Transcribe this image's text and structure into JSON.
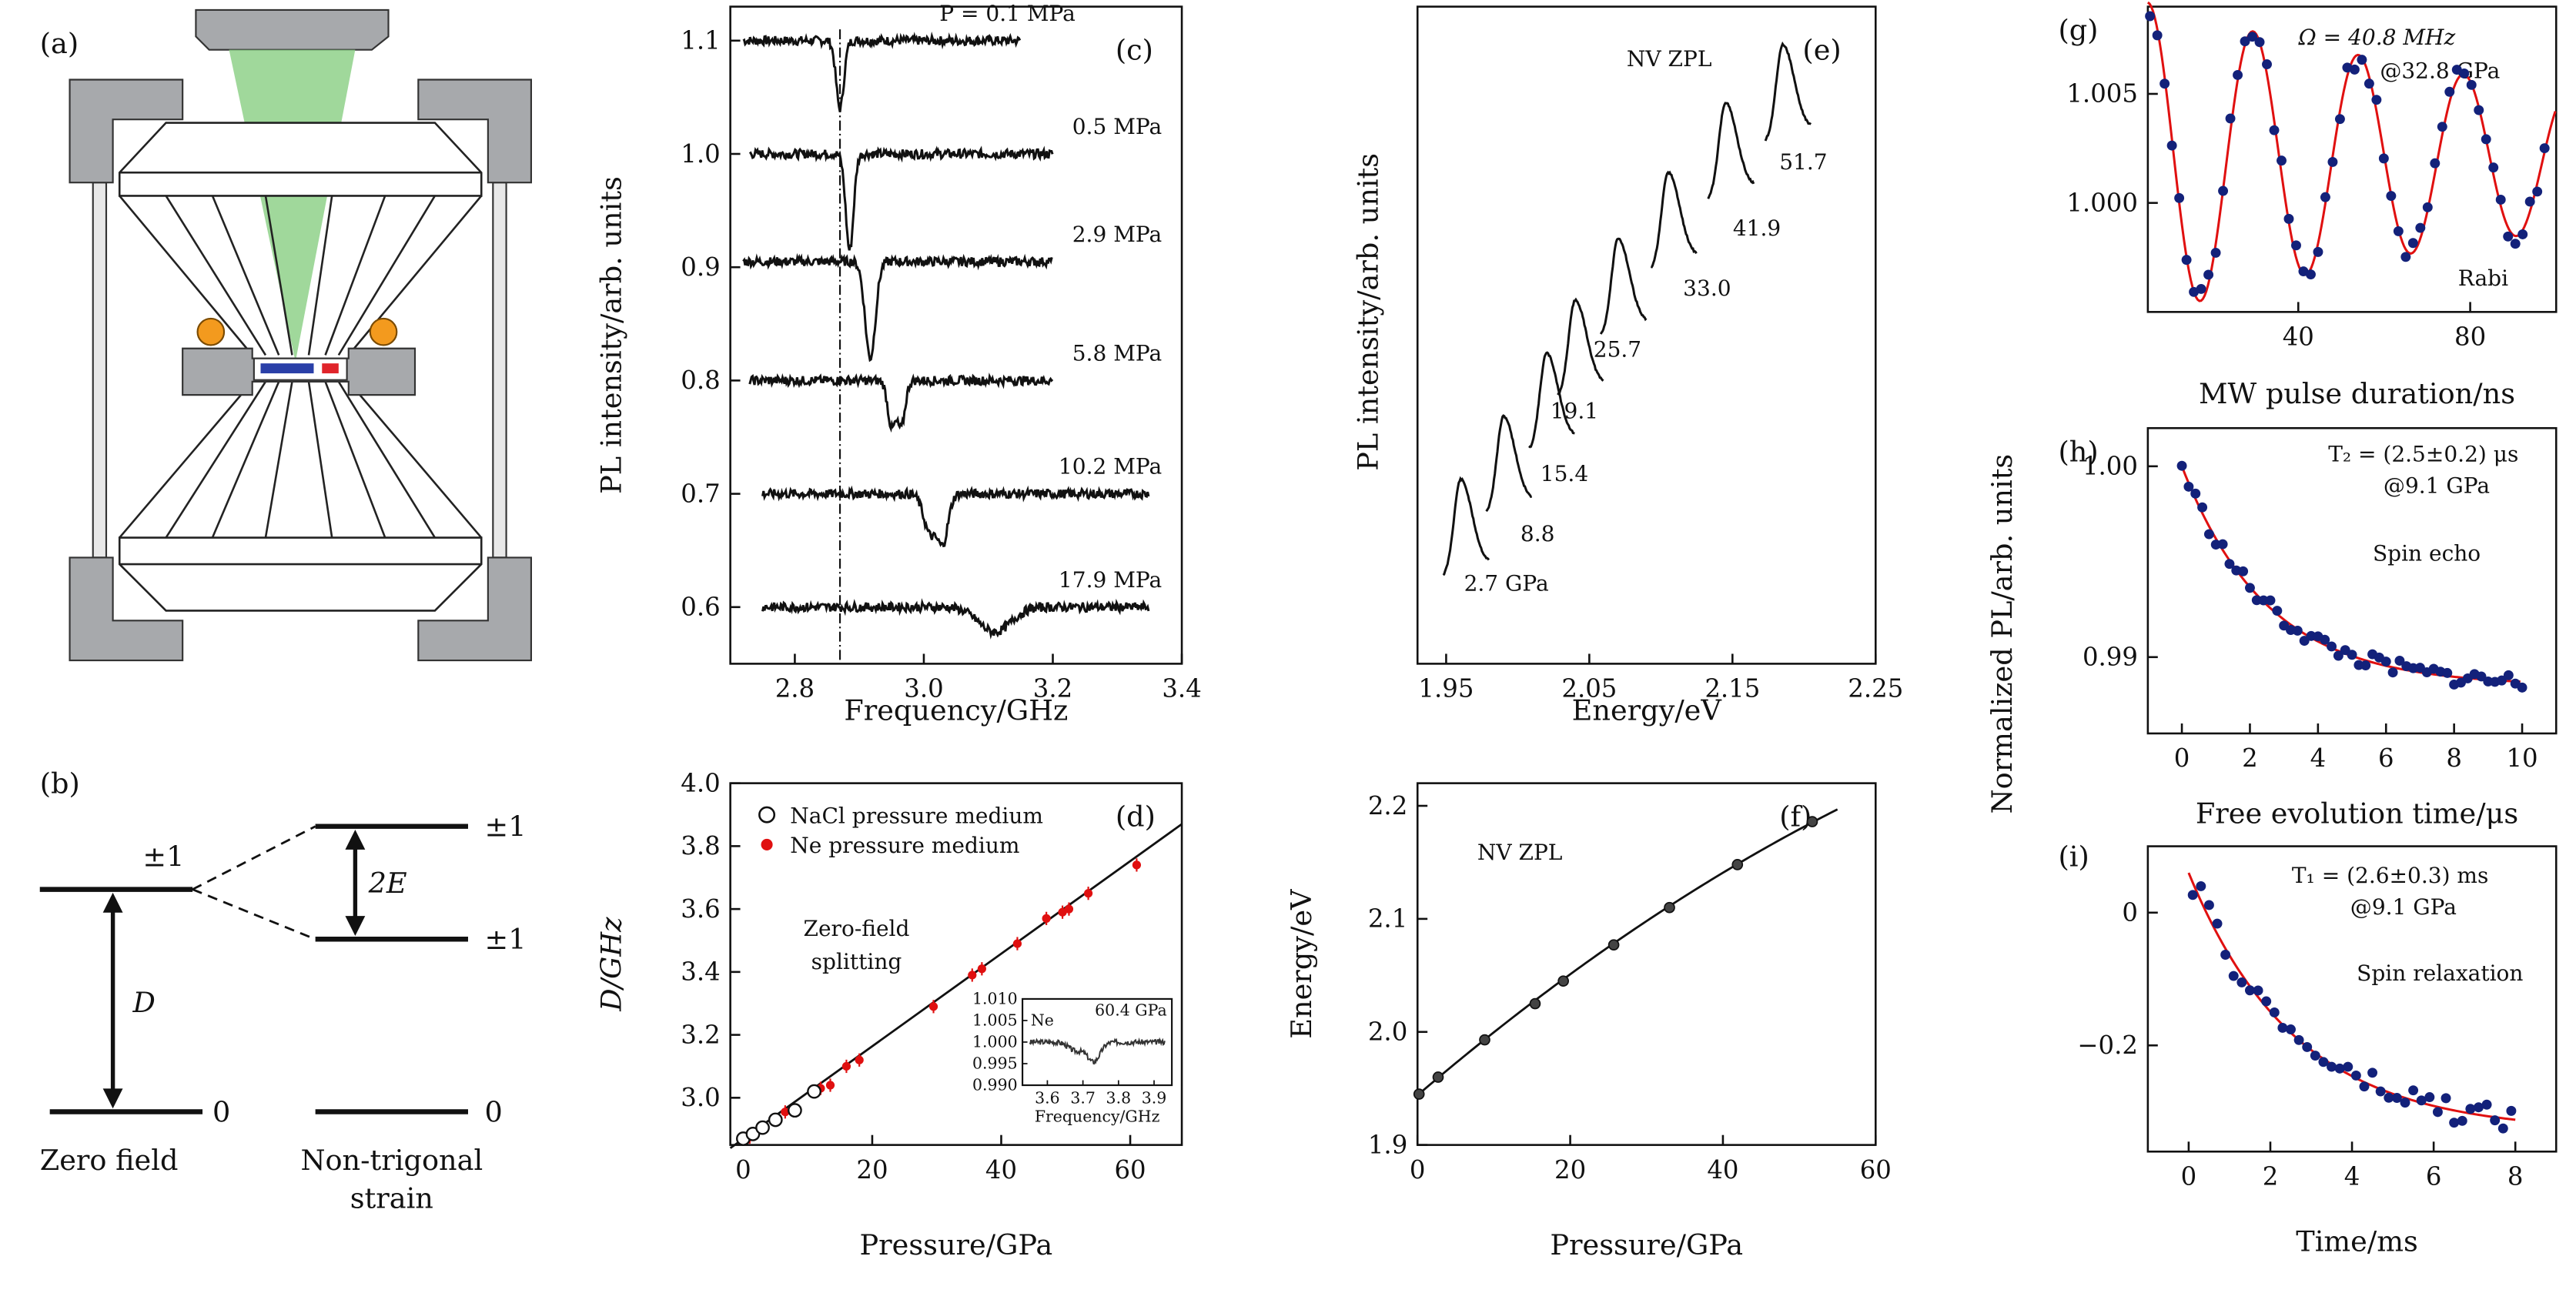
{
  "panels": {
    "a": "(a)",
    "b": "(b)",
    "c": "(c)",
    "d": "(d)",
    "e": "(e)",
    "f": "(f)",
    "g": "(g)",
    "h": "(h)",
    "i": "(i)"
  },
  "level_diagram": {
    "pm1": "±1",
    "zero": "0",
    "d": "D",
    "two_e": "2E",
    "zero_field": "Zero field",
    "strain_line1": "Non-trigonal",
    "strain_line2": "strain"
  },
  "colors": {
    "trace": "#111111",
    "fit": "#e01010",
    "dots": "#13217a",
    "ne_points": "#e01010",
    "beam": "#8fd18a",
    "anvil_gray": "#a7a9ac",
    "ruby": "#f39a1e"
  },
  "chart_data": [
    {
      "panel": "c",
      "type": "line",
      "xlabel": "Frequency/GHz",
      "ylabel": "PL intensity/arb. units",
      "xlim": [
        2.7,
        3.4
      ],
      "ylim": [
        0.55,
        1.13
      ],
      "xticks": [
        "2.8",
        "3.0",
        "3.2",
        "3.4"
      ],
      "yticks": [
        "0.6",
        "0.7",
        "0.8",
        "0.9",
        "1.0",
        "1.1"
      ],
      "series": [
        {
          "name": "P = 0.1 MPa",
          "offset": 1.1,
          "x_range": [
            2.72,
            3.15
          ],
          "dips": [
            [
              2.87,
              0.06,
              0.006
            ]
          ]
        },
        {
          "name": "0.5 MPa",
          "offset": 1.0,
          "x_range": [
            2.73,
            3.2
          ],
          "dips": [
            [
              2.885,
              0.085,
              0.006
            ]
          ]
        },
        {
          "name": "2.9 MPa",
          "offset": 0.905,
          "x_range": [
            2.72,
            3.2
          ],
          "dips": [
            [
              2.917,
              0.085,
              0.008
            ]
          ]
        },
        {
          "name": "5.8 MPa",
          "offset": 0.8,
          "x_range": [
            2.73,
            3.2
          ],
          "dips": [
            [
              2.95,
              0.04,
              0.006
            ],
            [
              2.965,
              0.04,
              0.006
            ]
          ]
        },
        {
          "name": "10.2 MPa",
          "offset": 0.7,
          "x_range": [
            2.75,
            3.35
          ],
          "dips": [
            [
              3.01,
              0.035,
              0.01
            ],
            [
              3.03,
              0.04,
              0.008
            ]
          ]
        },
        {
          "name": "17.9 MPa",
          "offset": 0.6,
          "x_range": [
            2.75,
            3.35
          ],
          "dips": [
            [
              3.11,
              0.022,
              0.025
            ]
          ]
        }
      ],
      "reference_line_x": 2.87
    },
    {
      "panel": "d",
      "type": "scatter",
      "xlabel": "Pressure/GPa",
      "ylabel": "D/GHz",
      "annotation": "Zero-field splitting",
      "annotation_line1": "Zero-field",
      "annotation_line2": "splitting",
      "xlim": [
        -2,
        68
      ],
      "ylim": [
        2.85,
        4.0
      ],
      "xticks": [
        "0",
        "20",
        "40",
        "60"
      ],
      "yticks": [
        "3.0",
        "3.2",
        "3.4",
        "3.6",
        "3.8",
        "4.0"
      ],
      "legend_position": "top",
      "series": [
        {
          "name": "NaCl pressure medium",
          "x": [
            0,
            1.5,
            3,
            5,
            8,
            11
          ],
          "y": [
            2.87,
            2.885,
            2.905,
            2.93,
            2.96,
            3.02
          ]
        },
        {
          "name": "Ne pressure medium",
          "x": [
            0,
            1,
            6.5,
            12,
            13.5,
            16,
            18,
            29.5,
            35.5,
            37,
            42.5,
            47,
            49.5,
            50.5,
            53.5,
            61
          ],
          "y": [
            2.87,
            2.875,
            2.955,
            3.03,
            3.04,
            3.1,
            3.12,
            3.29,
            3.39,
            3.41,
            3.49,
            3.57,
            3.59,
            3.6,
            3.65,
            3.74
          ]
        }
      ],
      "fit_line": {
        "x": [
          -2,
          68
        ],
        "y": [
          2.84,
          3.87
        ]
      },
      "inset": {
        "label": "Ne",
        "pressure": "60.4 GPa",
        "xlabel": "Frequency/GHz",
        "xticks": [
          "3.6",
          "3.7",
          "3.8",
          "3.9"
        ],
        "yticks": [
          "1.010",
          "1.005",
          "1.000",
          "0.995",
          "0.990"
        ],
        "xlim": [
          3.53,
          3.95
        ],
        "ylim": [
          0.99,
          1.01
        ],
        "dip_center": 3.73
      }
    },
    {
      "panel": "e",
      "type": "line",
      "title": "NV ZPL",
      "xlabel": "Energy/eV",
      "ylabel": "PL intensity/arb. units",
      "xlim": [
        1.93,
        2.25
      ],
      "xticks": [
        "1.95",
        "2.05",
        "2.15",
        "2.25"
      ],
      "series": [
        {
          "name": "2.7 GPa",
          "peak": 1.96
        },
        {
          "name": "8.8",
          "peak": 1.99
        },
        {
          "name": "15.4",
          "peak": 2.02
        },
        {
          "name": "19.1",
          "peak": 2.04
        },
        {
          "name": "25.7",
          "peak": 2.07
        },
        {
          "name": "33.0",
          "peak": 2.105
        },
        {
          "name": "41.9",
          "peak": 2.145
        },
        {
          "name": "51.7",
          "peak": 2.185
        }
      ]
    },
    {
      "panel": "f",
      "type": "scatter",
      "title": "NV ZPL",
      "xlabel": "Pressure/GPa",
      "ylabel": "Energy/eV",
      "xlim": [
        0,
        60
      ],
      "ylim": [
        1.9,
        2.22
      ],
      "xticks": [
        "0",
        "20",
        "40",
        "60"
      ],
      "yticks": [
        "1.9",
        "2.0",
        "2.1",
        "2.2"
      ],
      "x": [
        0.2,
        2.7,
        8.8,
        15.4,
        19.1,
        25.7,
        33.0,
        41.9,
        51.7
      ],
      "y": [
        1.945,
        1.96,
        1.993,
        2.025,
        2.045,
        2.077,
        2.11,
        2.148,
        2.186
      ]
    },
    {
      "panel": "g",
      "type": "scatter",
      "annotation_line1": "Ω = 40.8 MHz",
      "annotation_line2": "@32.8 GPa",
      "label": "Rabi",
      "xlabel": "MW pulse duration/ns",
      "xlim": [
        5,
        100
      ],
      "ylim": [
        0.995,
        1.009
      ],
      "xticks": [
        "40",
        "80"
      ],
      "yticks": [
        "1.000",
        "1.005"
      ],
      "fit": {
        "frequency_MHz": 40.8,
        "decay_ns": 120,
        "amplitude": 0.0075,
        "baseline": 1.002
      }
    },
    {
      "panel": "h",
      "type": "scatter",
      "annotation_line1": "T₂ = (2.5±0.2) μs",
      "annotation_line2": "@9.1 GPa",
      "label": "Spin echo",
      "xlabel": "Free evolution time/μs",
      "xlim": [
        -1,
        11
      ],
      "ylim": [
        0.986,
        1.002
      ],
      "xticks": [
        "0",
        "2",
        "4",
        "6",
        "8",
        "10"
      ],
      "yticks": [
        "0.99",
        "1.00"
      ],
      "fit": {
        "T2_us": 2.5,
        "start": 1.0,
        "end": 0.9885
      }
    },
    {
      "panel": "i",
      "type": "scatter",
      "annotation_line1": "T₁ = (2.6±0.3) ms",
      "annotation_line2": "@9.1 GPa",
      "label": "Spin relaxation",
      "xlabel": "Time/ms",
      "xlim": [
        -1,
        9
      ],
      "ylim": [
        -0.36,
        0.1
      ],
      "xticks": [
        "0",
        "2",
        "4",
        "6",
        "8"
      ],
      "yticks": [
        "0",
        "−0.2"
      ],
      "fit": {
        "T1_ms": 2.6,
        "start": 0.06,
        "end": -0.33
      }
    }
  ],
  "shared_ylabel_ghi": "Normalized PL/arb. units"
}
